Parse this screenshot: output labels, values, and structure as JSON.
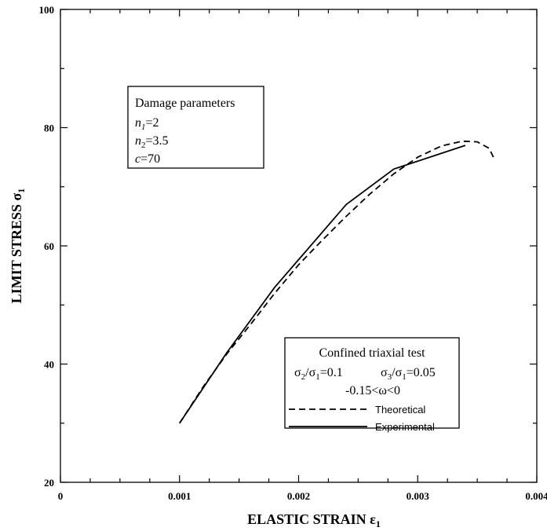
{
  "chart_data": {
    "type": "line",
    "xlabel": "ELASTIC STRAIN ε",
    "xlabel_sub": "1",
    "ylabel": "LIMIT STRESS σ",
    "ylabel_sub": "1",
    "xlim": [
      0,
      0.004
    ],
    "ylim": [
      20,
      100
    ],
    "x_ticks": [
      0,
      0.001,
      0.002,
      0.003,
      0.004
    ],
    "x_tick_labels": [
      "0",
      "0.001",
      "0.002",
      "0.003",
      "0.004"
    ],
    "y_ticks": [
      20,
      40,
      60,
      80,
      100
    ],
    "y_tick_labels": [
      "20",
      "40",
      "60",
      "80",
      "100"
    ],
    "grid": false,
    "series": [
      {
        "name": "Theoretical",
        "style": "dashed",
        "x": [
          0.001,
          0.0012,
          0.0014,
          0.0016,
          0.0018,
          0.002,
          0.0022,
          0.0024,
          0.0026,
          0.0028,
          0.003,
          0.0032,
          0.00335,
          0.0034,
          0.0035,
          0.0036,
          0.00364
        ],
        "y": [
          30,
          36.2,
          41.8,
          46.8,
          52,
          56.8,
          61,
          65,
          68.8,
          72.2,
          75,
          76.9,
          77.6,
          77.7,
          77.6,
          76.5,
          74.8
        ]
      },
      {
        "name": "Experimental",
        "style": "solid",
        "x": [
          0.001,
          0.0014,
          0.0018,
          0.0024,
          0.0028,
          0.0034
        ],
        "y": [
          30,
          42,
          53,
          67,
          73,
          77
        ]
      }
    ],
    "damage_box": {
      "title": "Damage parameters",
      "lines": [
        {
          "var": "n",
          "sub": "1",
          "eq": "=2"
        },
        {
          "var": "n",
          "sub": "2",
          "eq": "=3.5"
        },
        {
          "var": "c",
          "sub": "",
          "eq": "=70"
        }
      ]
    },
    "legend": {
      "position": "bottom-right",
      "title": "Confined triaxial test",
      "ratio1_num": "σ",
      "ratio1_num_sub": "2",
      "ratio1_den": "/σ",
      "ratio1_den_sub": "1",
      "ratio1_val": "=0.1",
      "ratio2_num": "σ",
      "ratio2_num_sub": "3",
      "ratio2_den": "/σ",
      "ratio2_den_sub": "1",
      "ratio2_val": "=0.05",
      "omega_range": "-0.15<ω<0",
      "entries": [
        {
          "label": "Theoretical",
          "style": "dashed"
        },
        {
          "label": "Experimental",
          "style": "solid"
        }
      ]
    },
    "colors": {
      "line": "#000000",
      "background": "#ffffff"
    }
  }
}
